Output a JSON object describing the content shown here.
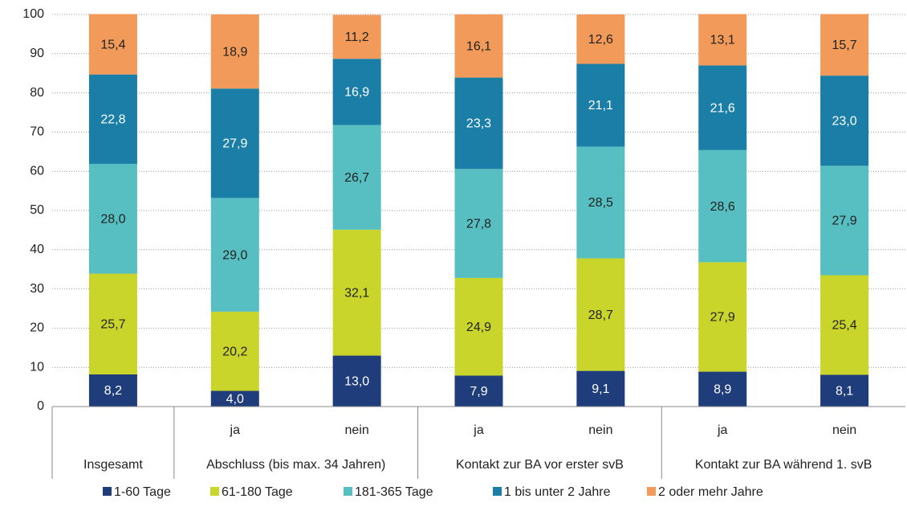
{
  "chart_data": {
    "type": "stacked_bar",
    "groups": [
      {
        "name": "Insgesamt",
        "categories": [
          null
        ]
      },
      {
        "name": "Abschluss (bis max. 34 Jahren)",
        "categories": [
          "ja",
          "nein"
        ]
      },
      {
        "name": "Kontakt zur BA vor erster svB",
        "categories": [
          "ja",
          "nein"
        ]
      },
      {
        "name": "Kontakt zur BA während 1. svB",
        "categories": [
          "ja",
          "nein"
        ]
      }
    ],
    "series": [
      {
        "name": "1-60 Tage",
        "color": "#1f3d7a",
        "label_color": "#ffffff",
        "values": [
          8.2,
          4.0,
          13.0,
          7.9,
          9.1,
          8.9,
          8.1
        ],
        "value_labels": [
          "8,2",
          "4,0",
          "13,0",
          "7,9",
          "9,1",
          "8,9",
          "8,1"
        ]
      },
      {
        "name": "61-180 Tage",
        "color": "#c9d52b",
        "label_color": "#222222",
        "values": [
          25.7,
          20.2,
          32.1,
          24.9,
          28.7,
          27.9,
          25.4
        ],
        "value_labels": [
          "25,7",
          "20,2",
          "32,1",
          "24,9",
          "28,7",
          "27,9",
          "25,4"
        ]
      },
      {
        "name": "181-365 Tage",
        "color": "#57bfc1",
        "label_color": "#222222",
        "values": [
          28.0,
          29.0,
          26.7,
          27.8,
          28.5,
          28.6,
          27.9
        ],
        "value_labels": [
          "28,0",
          "29,0",
          "26,7",
          "27,8",
          "28,5",
          "28,6",
          "27,9"
        ]
      },
      {
        "name": "1 bis unter 2 Jahre",
        "color": "#1a7ea6",
        "label_color": "#ffffff",
        "values": [
          22.8,
          27.9,
          16.9,
          23.3,
          21.1,
          21.6,
          23.0
        ],
        "value_labels": [
          "22,8",
          "27,9",
          "16,9",
          "23,3",
          "21,1",
          "21,6",
          "23,0"
        ]
      },
      {
        "name": "2 oder mehr Jahre",
        "color": "#f29a5a",
        "label_color": "#222222",
        "values": [
          15.4,
          18.9,
          11.2,
          16.1,
          12.6,
          13.1,
          15.7
        ],
        "value_labels": [
          "15,4",
          "18,9",
          "11,2",
          "16,1",
          "12,6",
          "13,1",
          "15,7"
        ]
      }
    ],
    "ylim": [
      0,
      100
    ],
    "yticks": [
      0,
      10,
      20,
      30,
      40,
      50,
      60,
      70,
      80,
      90,
      100
    ],
    "grid": true
  }
}
